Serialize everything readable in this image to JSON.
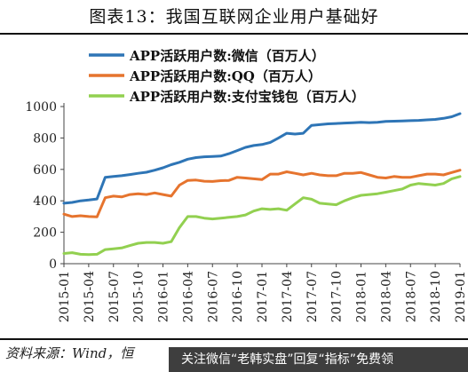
{
  "title": "图表13：我国互联网企业用户基础好",
  "source": "资料来源：Wind，恒",
  "banner": "关注微信“老韩实盘”回复“指标”免费领",
  "watermark": "",
  "colors": {
    "wechat": "#2e75b6",
    "qq": "#e6742e",
    "alipay": "#92d050"
  },
  "chart_data": {
    "type": "line",
    "x": [
      "2015-01",
      "2015-02",
      "2015-03",
      "2015-04",
      "2015-05",
      "2015-06",
      "2015-07",
      "2015-08",
      "2015-09",
      "2015-10",
      "2015-11",
      "2015-12",
      "2016-01",
      "2016-02",
      "2016-03",
      "2016-04",
      "2016-05",
      "2016-06",
      "2016-07",
      "2016-08",
      "2016-09",
      "2016-10",
      "2016-11",
      "2016-12",
      "2017-01",
      "2017-02",
      "2017-03",
      "2017-04",
      "2017-05",
      "2017-06",
      "2017-07",
      "2017-08",
      "2017-09",
      "2017-10",
      "2017-11",
      "2017-12",
      "2018-01",
      "2018-02",
      "2018-03",
      "2018-04",
      "2018-05",
      "2018-06",
      "2018-07",
      "2018-08",
      "2018-09",
      "2018-10",
      "2018-11",
      "2018-12",
      "2019-01"
    ],
    "tick_labels": [
      "2015-01",
      "2015-04",
      "2015-07",
      "2015-10",
      "2016-01",
      "2016-04",
      "2016-07",
      "2016-10",
      "2017-01",
      "2017-04",
      "2017-07",
      "2017-10",
      "2018-01",
      "2018-04",
      "2018-07",
      "2018-10",
      "2019-01"
    ],
    "ylim": [
      0,
      1000
    ],
    "yticks": [
      0,
      200,
      400,
      600,
      800,
      1000
    ],
    "legend_position": "top-left",
    "series": [
      {
        "name": "APP活跃用户数:微信（百万人）",
        "color": "#2e75b6",
        "values": [
          385,
          390,
          400,
          405,
          412,
          550,
          555,
          560,
          567,
          575,
          582,
          595,
          610,
          630,
          645,
          665,
          675,
          680,
          682,
          685,
          700,
          720,
          740,
          752,
          758,
          772,
          800,
          830,
          825,
          830,
          880,
          885,
          890,
          892,
          895,
          897,
          900,
          898,
          900,
          905,
          907,
          908,
          910,
          912,
          915,
          918,
          925,
          935,
          955
        ]
      },
      {
        "name": "APP活跃用户数:QQ（百万人）",
        "color": "#e6742e",
        "values": [
          315,
          300,
          305,
          300,
          298,
          420,
          430,
          425,
          440,
          445,
          440,
          450,
          440,
          430,
          500,
          530,
          532,
          525,
          523,
          528,
          530,
          550,
          545,
          540,
          535,
          570,
          570,
          585,
          575,
          565,
          575,
          565,
          560,
          560,
          575,
          575,
          580,
          565,
          550,
          545,
          555,
          550,
          550,
          560,
          570,
          570,
          565,
          580,
          595
        ]
      },
      {
        "name": "APP活跃用户数:支付宝钱包（百万人）",
        "color": "#92d050",
        "values": [
          65,
          70,
          60,
          58,
          60,
          90,
          95,
          100,
          115,
          130,
          135,
          135,
          130,
          140,
          230,
          300,
          300,
          290,
          285,
          290,
          295,
          300,
          310,
          335,
          350,
          345,
          350,
          340,
          380,
          420,
          410,
          385,
          380,
          375,
          400,
          420,
          435,
          440,
          445,
          455,
          465,
          475,
          500,
          510,
          505,
          500,
          510,
          540,
          555
        ]
      }
    ]
  }
}
